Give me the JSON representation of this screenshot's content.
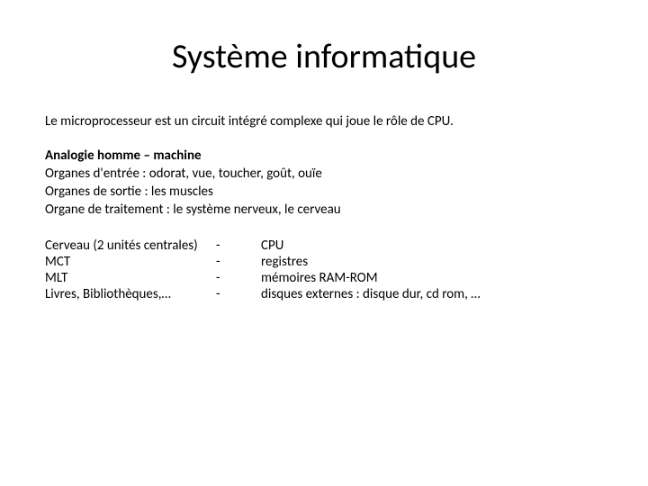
{
  "title": "Système informatique",
  "intro": "Le microprocesseur est un circuit intégré complexe qui joue le rôle de CPU.",
  "analogy": {
    "heading": "Analogie homme – machine",
    "lines": [
      "Organes d'entrée : odorat, vue, toucher, goût, ouïe",
      "Organes de sortie : les muscles",
      "Organe de traitement : le système nerveux, le cerveau"
    ]
  },
  "comparison": {
    "rows": [
      {
        "left": "Cerveau (2 unités centrales)",
        "dash": "-",
        "right": "CPU"
      },
      {
        "left": "MCT",
        "dash": "-",
        "right": "registres"
      },
      {
        "left": "MLT",
        "dash": "-",
        "right": "mémoires RAM-ROM"
      },
      {
        "left": "Livres, Bibliothèques,…",
        "dash": "-",
        "right": "disques externes : disque dur, cd rom, …"
      }
    ]
  },
  "colors": {
    "background": "#ffffff",
    "text": "#000000"
  },
  "typography": {
    "title_fontsize": 38,
    "body_fontsize": 15,
    "font_family": "Calibri"
  }
}
